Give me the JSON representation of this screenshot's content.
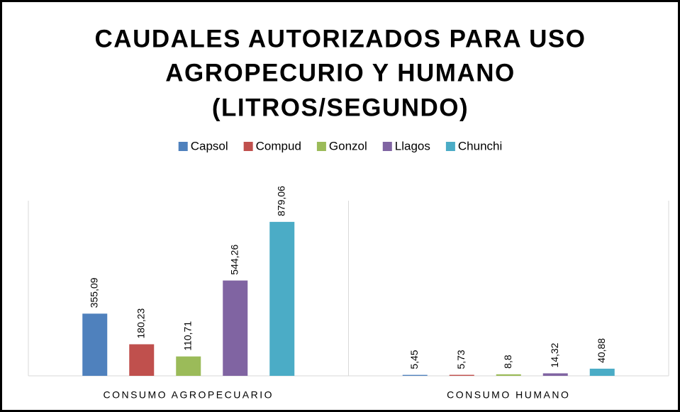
{
  "chart_data": {
    "type": "bar",
    "title": [
      "CAUDALES AUTORIZADOS PARA USO",
      "AGROPECURIO Y HUMANO",
      "(LITROS/SEGUNDO)"
    ],
    "categories": [
      "CONSUMO AGROPECUARIO",
      "CONSUMO HUMANO"
    ],
    "series": [
      {
        "name": "Capsol",
        "color": "#4f81bd",
        "values": [
          355.09,
          5.45
        ],
        "value_labels": [
          "355,09",
          "5,45"
        ]
      },
      {
        "name": "Compud",
        "color": "#c0504d",
        "values": [
          180.23,
          5.73
        ],
        "value_labels": [
          "180,23",
          "5,73"
        ]
      },
      {
        "name": "Gonzol",
        "color": "#9bbb59",
        "values": [
          110.71,
          8.8
        ],
        "value_labels": [
          "110,71",
          "8,8"
        ]
      },
      {
        "name": "Llagos",
        "color": "#8064a2",
        "values": [
          544.26,
          14.32
        ],
        "value_labels": [
          "544,26",
          "14,32"
        ]
      },
      {
        "name": "Chunchi",
        "color": "#4bacc6",
        "values": [
          879.06,
          40.88
        ],
        "value_labels": [
          "879,06",
          "40,88"
        ]
      }
    ],
    "ylim": [
      0,
      1000
    ],
    "legend": "top"
  }
}
